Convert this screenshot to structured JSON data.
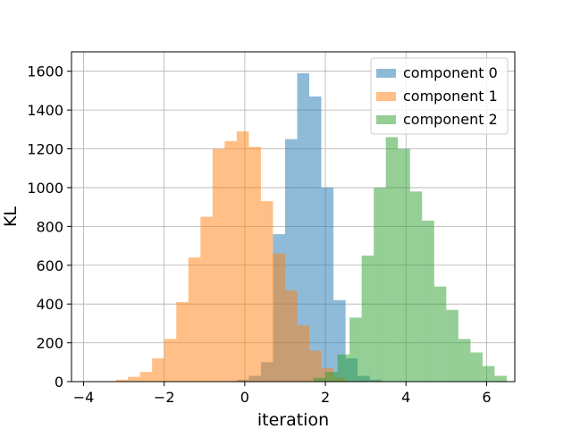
{
  "chart_data": {
    "type": "histogram",
    "xlabel": "iteration",
    "ylabel": "KL",
    "xlim": [
      -4.3,
      6.7
    ],
    "ylim": [
      0,
      1700
    ],
    "x_ticks": [
      -4,
      -2,
      0,
      2,
      4,
      6
    ],
    "y_ticks": [
      0,
      200,
      400,
      600,
      800,
      1000,
      1200,
      1400,
      1600
    ],
    "grid": true,
    "legend_position": "top-right",
    "series": [
      {
        "name": "component 0",
        "color": "#1f77b4",
        "opacity": 0.5,
        "bins": [
          {
            "x0": -0.2,
            "x1": 0.1,
            "y": 10
          },
          {
            "x0": 0.1,
            "x1": 0.4,
            "y": 30
          },
          {
            "x0": 0.4,
            "x1": 0.7,
            "y": 100
          },
          {
            "x0": 0.7,
            "x1": 1.0,
            "y": 760
          },
          {
            "x0": 1.0,
            "x1": 1.3,
            "y": 1250
          },
          {
            "x0": 1.3,
            "x1": 1.6,
            "y": 1590
          },
          {
            "x0": 1.6,
            "x1": 1.9,
            "y": 1470
          },
          {
            "x0": 1.9,
            "x1": 2.2,
            "y": 1000
          },
          {
            "x0": 2.2,
            "x1": 2.5,
            "y": 420
          },
          {
            "x0": 2.5,
            "x1": 2.8,
            "y": 120
          },
          {
            "x0": 2.8,
            "x1": 3.1,
            "y": 30
          },
          {
            "x0": 3.1,
            "x1": 3.4,
            "y": 10
          }
        ]
      },
      {
        "name": "component 1",
        "color": "#ff7f0e",
        "opacity": 0.5,
        "bins": [
          {
            "x0": -3.2,
            "x1": -2.9,
            "y": 10
          },
          {
            "x0": -2.9,
            "x1": -2.6,
            "y": 25
          },
          {
            "x0": -2.6,
            "x1": -2.3,
            "y": 50
          },
          {
            "x0": -2.3,
            "x1": -2.0,
            "y": 120
          },
          {
            "x0": -2.0,
            "x1": -1.7,
            "y": 220
          },
          {
            "x0": -1.7,
            "x1": -1.4,
            "y": 410
          },
          {
            "x0": -1.4,
            "x1": -1.1,
            "y": 640
          },
          {
            "x0": -1.1,
            "x1": -0.8,
            "y": 850
          },
          {
            "x0": -0.8,
            "x1": -0.5,
            "y": 1200
          },
          {
            "x0": -0.5,
            "x1": -0.2,
            "y": 1240
          },
          {
            "x0": -0.2,
            "x1": 0.1,
            "y": 1290
          },
          {
            "x0": 0.1,
            "x1": 0.4,
            "y": 1210
          },
          {
            "x0": 0.4,
            "x1": 0.7,
            "y": 930
          },
          {
            "x0": 0.7,
            "x1": 1.0,
            "y": 660
          },
          {
            "x0": 1.0,
            "x1": 1.3,
            "y": 470
          },
          {
            "x0": 1.3,
            "x1": 1.6,
            "y": 290
          },
          {
            "x0": 1.6,
            "x1": 1.9,
            "y": 160
          },
          {
            "x0": 1.9,
            "x1": 2.2,
            "y": 70
          },
          {
            "x0": 2.2,
            "x1": 2.5,
            "y": 20
          }
        ]
      },
      {
        "name": "component 2",
        "color": "#2ca02c",
        "opacity": 0.5,
        "bins": [
          {
            "x0": 1.7,
            "x1": 2.0,
            "y": 20
          },
          {
            "x0": 2.0,
            "x1": 2.3,
            "y": 50
          },
          {
            "x0": 2.3,
            "x1": 2.6,
            "y": 140
          },
          {
            "x0": 2.6,
            "x1": 2.9,
            "y": 330
          },
          {
            "x0": 2.9,
            "x1": 3.2,
            "y": 650
          },
          {
            "x0": 3.2,
            "x1": 3.5,
            "y": 1000
          },
          {
            "x0": 3.5,
            "x1": 3.8,
            "y": 1260
          },
          {
            "x0": 3.8,
            "x1": 4.1,
            "y": 1200
          },
          {
            "x0": 4.1,
            "x1": 4.4,
            "y": 980
          },
          {
            "x0": 4.4,
            "x1": 4.7,
            "y": 830
          },
          {
            "x0": 4.7,
            "x1": 5.0,
            "y": 490
          },
          {
            "x0": 5.0,
            "x1": 5.3,
            "y": 370
          },
          {
            "x0": 5.3,
            "x1": 5.6,
            "y": 220
          },
          {
            "x0": 5.6,
            "x1": 5.9,
            "y": 150
          },
          {
            "x0": 5.9,
            "x1": 6.2,
            "y": 80
          },
          {
            "x0": 6.2,
            "x1": 6.5,
            "y": 30
          }
        ]
      }
    ]
  }
}
